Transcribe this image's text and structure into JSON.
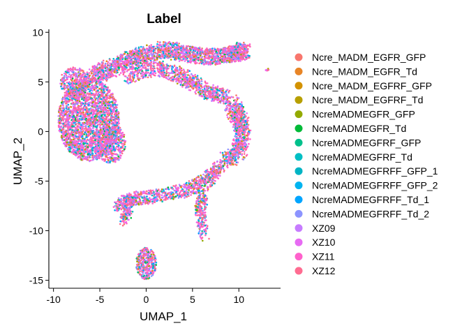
{
  "chart_data": {
    "type": "scatter",
    "title": "Label",
    "xlabel": "UMAP_1",
    "ylabel": "UMAP_2",
    "xlim": [
      -10.5,
      14.5
    ],
    "ylim": [
      -15.8,
      10.3
    ],
    "x_ticks": [
      -10,
      -5,
      0,
      5,
      10
    ],
    "y_ticks": [
      -15,
      -10,
      -5,
      0,
      5,
      10
    ],
    "x_tick_labels": [
      "-10",
      "-5",
      "0",
      "5",
      "10"
    ],
    "y_tick_labels": [
      "-15",
      "-10",
      "-5",
      "0",
      "5",
      "10"
    ],
    "grid": false,
    "legend_position": "right",
    "series": [
      {
        "name": "Ncre_MADM_EGFR_GFP",
        "color": "#F8766D"
      },
      {
        "name": "Ncre_MADM_EGFR_Td",
        "color": "#E88526"
      },
      {
        "name": "Ncre_MADM_EGFRF_GFP",
        "color": "#D39200"
      },
      {
        "name": "Ncre_MADM_EGFRF_Td",
        "color": "#B79F00"
      },
      {
        "name": "NcreMADMEGFR_GFP",
        "color": "#93AA00"
      },
      {
        "name": "NcreMADMEGFR_Td",
        "color": "#00BA38"
      },
      {
        "name": "NcreMADMEGFRF_GFP",
        "color": "#00C08B"
      },
      {
        "name": "NcreMADMEGFRF_Td",
        "color": "#00BFC4"
      },
      {
        "name": "NcreMADMEGFRFF_GFP_1",
        "color": "#00B4C4"
      },
      {
        "name": "NcreMADMEGFRFF_GFP_2",
        "color": "#00B4F0"
      },
      {
        "name": "NcreMADMEGFRFF_Td_1",
        "color": "#00A5FF"
      },
      {
        "name": "NcreMADMEGFRFF_Td_2",
        "color": "#8C94FF"
      },
      {
        "name": "XZ09",
        "color": "#C77CFF"
      },
      {
        "name": "XZ10",
        "color": "#E76BF3"
      },
      {
        "name": "XZ11",
        "color": "#FF61CC"
      },
      {
        "name": "XZ12",
        "color": "#FF6C91"
      }
    ],
    "clusters": [
      {
        "region": "large-left-lobe",
        "x_range": [
          -9.5,
          -2.5
        ],
        "y_range": [
          -3.5,
          6.8
        ]
      },
      {
        "region": "upper-arc",
        "x_range": [
          -5.5,
          10.5
        ],
        "y_range": [
          2.5,
          8.8
        ]
      },
      {
        "region": "right-arm",
        "x_range": [
          6.5,
          11.5
        ],
        "y_range": [
          -3.5,
          3.5
        ]
      },
      {
        "region": "lower-right-arm",
        "x_range": [
          -3.5,
          8.0
        ],
        "y_range": [
          -11.2,
          -3.5
        ]
      },
      {
        "region": "bottom-island",
        "x_range": [
          -1.5,
          1.5
        ],
        "y_range": [
          -15.0,
          -11.0
        ]
      },
      {
        "region": "outlier",
        "x_range": [
          12.8,
          13.3
        ],
        "y_range": [
          6.1,
          6.4
        ]
      }
    ]
  }
}
